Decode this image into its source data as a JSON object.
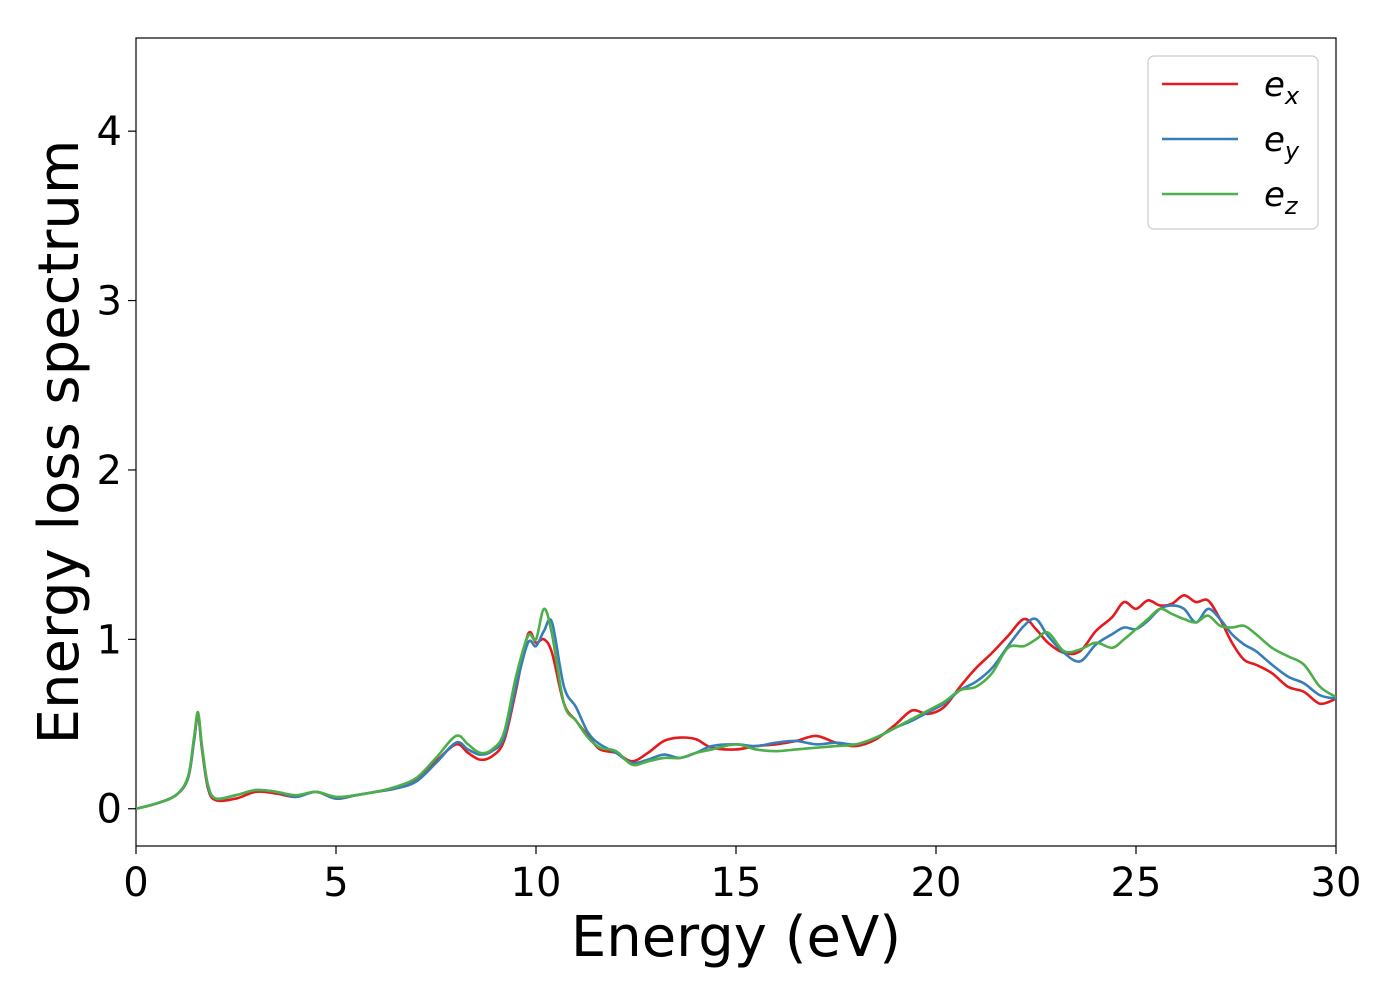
{
  "chart_data": {
    "type": "line",
    "xlabel": "Energy (eV)",
    "ylabel": "Energy loss spectrum",
    "xlim": [
      0,
      30
    ],
    "ylim": [
      -0.22,
      4.55
    ],
    "xticks": [
      "0",
      "5",
      "10",
      "15",
      "20",
      "25",
      "30"
    ],
    "yticks": [
      "0",
      "1",
      "2",
      "3",
      "4"
    ],
    "grid": false,
    "legend_position": "top-right",
    "series": [
      {
        "name": "e_x",
        "label_main": "e",
        "label_sub": "x",
        "color": "#e41a1c",
        "x": [
          0,
          0.5,
          1.0,
          1.3,
          1.45,
          1.55,
          1.65,
          1.8,
          2.0,
          2.5,
          3.0,
          3.5,
          4.0,
          4.5,
          5.0,
          5.5,
          6.0,
          6.5,
          7.0,
          7.5,
          8.0,
          8.3,
          8.6,
          8.9,
          9.2,
          9.5,
          9.8,
          10.0,
          10.2,
          10.4,
          10.7,
          11.0,
          11.3,
          11.6,
          12.0,
          12.4,
          12.8,
          13.2,
          13.6,
          14.0,
          14.4,
          15.0,
          15.5,
          16.0,
          16.5,
          17.0,
          17.5,
          18.0,
          18.5,
          19.0,
          19.4,
          19.8,
          20.2,
          20.6,
          21.0,
          21.4,
          21.8,
          22.2,
          22.5,
          22.8,
          23.2,
          23.6,
          24.0,
          24.4,
          24.7,
          25.0,
          25.3,
          25.6,
          25.9,
          26.2,
          26.5,
          26.8,
          27.1,
          27.4,
          27.7,
          28.0,
          28.4,
          28.8,
          29.2,
          29.6,
          30.0
        ],
        "y": [
          0.0,
          0.03,
          0.08,
          0.18,
          0.4,
          0.55,
          0.35,
          0.12,
          0.05,
          0.06,
          0.1,
          0.09,
          0.07,
          0.1,
          0.06,
          0.08,
          0.1,
          0.12,
          0.17,
          0.28,
          0.38,
          0.33,
          0.29,
          0.31,
          0.4,
          0.7,
          1.03,
          0.98,
          1.0,
          0.92,
          0.62,
          0.52,
          0.43,
          0.35,
          0.33,
          0.28,
          0.33,
          0.4,
          0.42,
          0.41,
          0.36,
          0.35,
          0.37,
          0.38,
          0.4,
          0.43,
          0.39,
          0.37,
          0.41,
          0.5,
          0.58,
          0.56,
          0.6,
          0.72,
          0.83,
          0.92,
          1.02,
          1.12,
          1.06,
          0.98,
          0.92,
          0.93,
          1.05,
          1.13,
          1.22,
          1.18,
          1.23,
          1.2,
          1.21,
          1.26,
          1.22,
          1.23,
          1.12,
          0.98,
          0.88,
          0.85,
          0.8,
          0.72,
          0.69,
          0.62,
          0.65
        ]
      },
      {
        "name": "e_y",
        "label_main": "e",
        "label_sub": "y",
        "color": "#377eb8",
        "x": [
          0,
          0.5,
          1.0,
          1.3,
          1.45,
          1.55,
          1.65,
          1.8,
          2.0,
          2.5,
          3.0,
          3.5,
          4.0,
          4.5,
          5.0,
          5.5,
          6.0,
          6.5,
          7.0,
          7.5,
          8.0,
          8.3,
          8.6,
          8.9,
          9.2,
          9.5,
          9.8,
          10.0,
          10.2,
          10.4,
          10.7,
          11.0,
          11.3,
          11.6,
          12.0,
          12.4,
          12.8,
          13.2,
          13.6,
          14.0,
          14.4,
          15.0,
          15.5,
          16.0,
          16.5,
          17.0,
          17.5,
          18.0,
          18.5,
          19.0,
          19.4,
          19.8,
          20.2,
          20.6,
          21.0,
          21.4,
          21.8,
          22.2,
          22.5,
          22.8,
          23.2,
          23.6,
          24.0,
          24.4,
          24.7,
          25.0,
          25.3,
          25.6,
          25.9,
          26.2,
          26.5,
          26.8,
          27.1,
          27.4,
          27.7,
          28.0,
          28.4,
          28.8,
          29.2,
          29.6,
          30.0
        ],
        "y": [
          0.0,
          0.03,
          0.08,
          0.18,
          0.4,
          0.56,
          0.36,
          0.13,
          0.06,
          0.08,
          0.11,
          0.1,
          0.07,
          0.1,
          0.06,
          0.08,
          0.1,
          0.12,
          0.16,
          0.27,
          0.39,
          0.35,
          0.32,
          0.34,
          0.42,
          0.72,
          0.98,
          0.96,
          1.05,
          1.1,
          0.72,
          0.6,
          0.45,
          0.38,
          0.33,
          0.27,
          0.29,
          0.32,
          0.3,
          0.33,
          0.37,
          0.38,
          0.37,
          0.39,
          0.4,
          0.38,
          0.39,
          0.38,
          0.42,
          0.48,
          0.52,
          0.57,
          0.62,
          0.7,
          0.75,
          0.83,
          0.96,
          1.08,
          1.12,
          1.02,
          0.92,
          0.87,
          0.97,
          1.03,
          1.07,
          1.06,
          1.11,
          1.18,
          1.2,
          1.18,
          1.1,
          1.18,
          1.12,
          1.03,
          0.97,
          0.93,
          0.85,
          0.78,
          0.74,
          0.67,
          0.65
        ]
      },
      {
        "name": "e_z",
        "label_main": "e",
        "label_sub": "z",
        "color": "#4daf4a",
        "x": [
          0,
          0.5,
          1.0,
          1.3,
          1.45,
          1.55,
          1.65,
          1.8,
          2.0,
          2.5,
          3.0,
          3.5,
          4.0,
          4.5,
          5.0,
          5.5,
          6.0,
          6.5,
          7.0,
          7.5,
          8.0,
          8.3,
          8.6,
          8.9,
          9.2,
          9.5,
          9.8,
          10.0,
          10.2,
          10.4,
          10.7,
          11.0,
          11.3,
          11.6,
          12.0,
          12.4,
          12.8,
          13.2,
          13.6,
          14.0,
          14.4,
          15.0,
          15.5,
          16.0,
          16.5,
          17.0,
          17.5,
          18.0,
          18.5,
          19.0,
          19.4,
          19.8,
          20.2,
          20.6,
          21.0,
          21.4,
          21.8,
          22.2,
          22.5,
          22.8,
          23.2,
          23.6,
          24.0,
          24.4,
          24.7,
          25.0,
          25.3,
          25.6,
          25.9,
          26.2,
          26.5,
          26.8,
          27.1,
          27.4,
          27.7,
          28.0,
          28.4,
          28.8,
          29.2,
          29.6,
          30.0
        ],
        "y": [
          0.0,
          0.03,
          0.08,
          0.19,
          0.42,
          0.57,
          0.37,
          0.14,
          0.06,
          0.08,
          0.11,
          0.1,
          0.08,
          0.1,
          0.07,
          0.08,
          0.1,
          0.13,
          0.18,
          0.3,
          0.43,
          0.38,
          0.33,
          0.35,
          0.45,
          0.78,
          1.02,
          1.0,
          1.18,
          1.03,
          0.62,
          0.52,
          0.42,
          0.36,
          0.34,
          0.26,
          0.28,
          0.3,
          0.3,
          0.33,
          0.35,
          0.38,
          0.35,
          0.34,
          0.35,
          0.36,
          0.37,
          0.38,
          0.42,
          0.48,
          0.53,
          0.58,
          0.63,
          0.7,
          0.72,
          0.8,
          0.95,
          0.96,
          1.0,
          1.04,
          0.93,
          0.94,
          0.98,
          0.95,
          1.0,
          1.06,
          1.12,
          1.18,
          1.15,
          1.12,
          1.1,
          1.14,
          1.08,
          1.07,
          1.08,
          1.03,
          0.95,
          0.9,
          0.85,
          0.72,
          0.66
        ]
      }
    ]
  }
}
